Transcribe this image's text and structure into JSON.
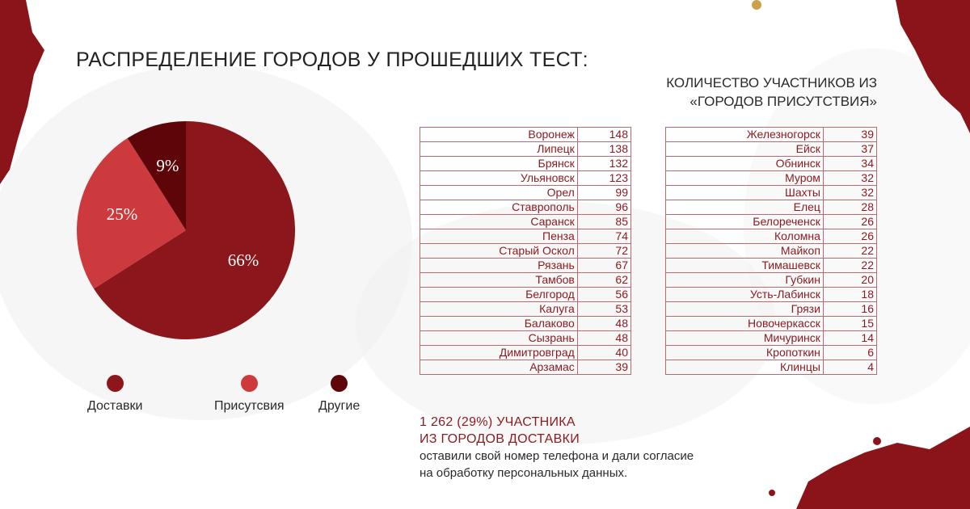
{
  "header": {
    "title": "РАСПРЕДЕЛЕНИЕ ГОРОДОВ У ПРОШЕДШИХ ТЕСТ:",
    "subtitle_line1": "КОЛИЧЕСТВО УЧАСТНИКОВ ИЗ",
    "subtitle_line2": "«ГОРОДОВ ПРИСУТСТВИЯ»"
  },
  "colors": {
    "accent": "#8a1a1f",
    "dostavki": "#8b161b",
    "prisutstvia": "#cd3a3e",
    "drugie": "#5e0509"
  },
  "chart_data": {
    "type": "pie",
    "series": [
      {
        "name": "Доставки",
        "value": 66,
        "label": "66%",
        "color": "#8b161b"
      },
      {
        "name": "Присутсвия",
        "value": 25,
        "label": "25%",
        "color": "#cd3a3e"
      },
      {
        "name": "Другие",
        "value": 9,
        "label": "9%",
        "color": "#5e0509"
      }
    ],
    "legend_position": "bottom"
  },
  "legend": [
    {
      "label": "Доставки"
    },
    {
      "label": "Присутсвия"
    },
    {
      "label": "Другие"
    }
  ],
  "tables": {
    "left": [
      {
        "city": "Воронеж",
        "count": "148"
      },
      {
        "city": "Липецк",
        "count": "138"
      },
      {
        "city": "Брянск",
        "count": "132"
      },
      {
        "city": "Ульяновск",
        "count": "123"
      },
      {
        "city": "Орел",
        "count": "99"
      },
      {
        "city": "Ставрополь",
        "count": "96"
      },
      {
        "city": "Саранск",
        "count": "85"
      },
      {
        "city": "Пенза",
        "count": "74"
      },
      {
        "city": "Старый Оскол",
        "count": "72"
      },
      {
        "city": "Рязань",
        "count": "67"
      },
      {
        "city": "Тамбов",
        "count": "62"
      },
      {
        "city": "Белгород",
        "count": "56"
      },
      {
        "city": "Калуга",
        "count": "53"
      },
      {
        "city": "Балаково",
        "count": "48"
      },
      {
        "city": "Сызрань",
        "count": "48"
      },
      {
        "city": "Димитровград",
        "count": "40"
      },
      {
        "city": "Арзамас",
        "count": "39"
      }
    ],
    "right": [
      {
        "city": "Железногорск",
        "count": "39"
      },
      {
        "city": "Ейск",
        "count": "37"
      },
      {
        "city": "Обнинск",
        "count": "34"
      },
      {
        "city": "Муром",
        "count": "32"
      },
      {
        "city": "Шахты",
        "count": "32"
      },
      {
        "city": "Елец",
        "count": "28"
      },
      {
        "city": "Белореченск",
        "count": "26"
      },
      {
        "city": "Коломна",
        "count": "26"
      },
      {
        "city": "Майкоп",
        "count": "22"
      },
      {
        "city": "Тимашевск",
        "count": "22"
      },
      {
        "city": "Губкин",
        "count": "20"
      },
      {
        "city": "Усть-Лабинск",
        "count": "18"
      },
      {
        "city": "Грязи",
        "count": "16"
      },
      {
        "city": "Новочеркасск",
        "count": "15"
      },
      {
        "city": "Мичуринск",
        "count": "14"
      },
      {
        "city": "Кропоткин",
        "count": "6"
      },
      {
        "city": "Клинцы",
        "count": "4"
      }
    ]
  },
  "note": {
    "highlight_line1": "1 262 (29%) УЧАСТНИКА",
    "highlight_line2": "ИЗ ГОРОДОВ ДОСТАВКИ",
    "text_line1": "оставили свой номер телефона и дали согласие",
    "text_line2": "на обработку персональных данных."
  }
}
